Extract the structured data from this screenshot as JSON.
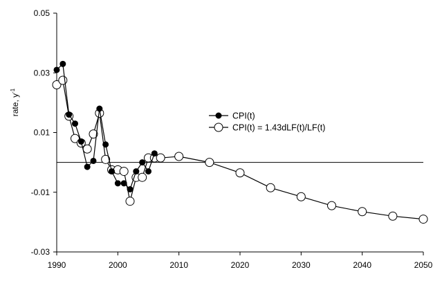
{
  "chart_data": {
    "type": "line",
    "title": "",
    "xlabel": "",
    "ylabel": "rate, y",
    "ylabel_superscript": "-1",
    "xlim": [
      1990,
      2050
    ],
    "ylim": [
      -0.03,
      0.05
    ],
    "x_ticks": [
      "1990",
      "2000",
      "2010",
      "2020",
      "2030",
      "2040",
      "2050"
    ],
    "y_ticks": [
      "0.05",
      "0.03",
      "0.01",
      "-0.01",
      "-0.03"
    ],
    "grid": false,
    "zero_line": true,
    "legend_position": "center-right",
    "series": [
      {
        "name": "CPI(t)",
        "marker": "filled-circle",
        "x": [
          1990,
          1991,
          1992,
          1993,
          1994,
          1995,
          1996,
          1997,
          1998,
          1999,
          2000,
          2001,
          2002,
          2003,
          2004,
          2005,
          2006
        ],
        "y": [
          0.031,
          0.033,
          0.016,
          0.013,
          0.007,
          -0.0015,
          0.0005,
          0.018,
          0.006,
          -0.003,
          -0.007,
          -0.007,
          -0.009,
          -0.003,
          0.0,
          -0.003,
          0.003
        ]
      },
      {
        "name": "CPI(t) = 1.43dLF(t)/LF(t)",
        "marker": "open-circle",
        "x": [
          1990,
          1991,
          1992,
          1993,
          1994,
          1995,
          1996,
          1997,
          1998,
          1999,
          2000,
          2001,
          2002,
          2003,
          2004,
          2005,
          2006,
          2007,
          2010,
          2015,
          2020,
          2025,
          2030,
          2035,
          2040,
          2045,
          2050
        ],
        "y": [
          0.026,
          0.0275,
          0.0155,
          0.008,
          0.0065,
          0.0045,
          0.0095,
          0.0165,
          0.001,
          -0.0025,
          -0.0025,
          -0.003,
          -0.013,
          -0.005,
          -0.005,
          0.0015,
          0.0015,
          0.0015,
          0.002,
          0.0,
          -0.0035,
          -0.0085,
          -0.0115,
          -0.0145,
          -0.0165,
          -0.018,
          -0.019
        ]
      }
    ]
  }
}
